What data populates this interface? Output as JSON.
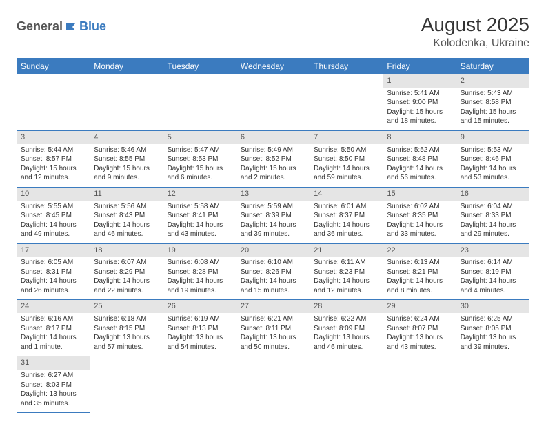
{
  "logo": {
    "text1": "General",
    "text2": "Blue"
  },
  "title": "August 2025",
  "location": "Kolodenka, Ukraine",
  "colors": {
    "header_bg": "#3b7bbf",
    "header_text": "#ffffff",
    "daynum_bg": "#e5e5e5",
    "cell_border": "#3b7bbf",
    "body_text": "#333333"
  },
  "weekdays": [
    "Sunday",
    "Monday",
    "Tuesday",
    "Wednesday",
    "Thursday",
    "Friday",
    "Saturday"
  ],
  "weeks": [
    [
      null,
      null,
      null,
      null,
      null,
      {
        "n": "1",
        "sr": "Sunrise: 5:41 AM",
        "ss": "Sunset: 9:00 PM",
        "dl": "Daylight: 15 hours and 18 minutes."
      },
      {
        "n": "2",
        "sr": "Sunrise: 5:43 AM",
        "ss": "Sunset: 8:58 PM",
        "dl": "Daylight: 15 hours and 15 minutes."
      }
    ],
    [
      {
        "n": "3",
        "sr": "Sunrise: 5:44 AM",
        "ss": "Sunset: 8:57 PM",
        "dl": "Daylight: 15 hours and 12 minutes."
      },
      {
        "n": "4",
        "sr": "Sunrise: 5:46 AM",
        "ss": "Sunset: 8:55 PM",
        "dl": "Daylight: 15 hours and 9 minutes."
      },
      {
        "n": "5",
        "sr": "Sunrise: 5:47 AM",
        "ss": "Sunset: 8:53 PM",
        "dl": "Daylight: 15 hours and 6 minutes."
      },
      {
        "n": "6",
        "sr": "Sunrise: 5:49 AM",
        "ss": "Sunset: 8:52 PM",
        "dl": "Daylight: 15 hours and 2 minutes."
      },
      {
        "n": "7",
        "sr": "Sunrise: 5:50 AM",
        "ss": "Sunset: 8:50 PM",
        "dl": "Daylight: 14 hours and 59 minutes."
      },
      {
        "n": "8",
        "sr": "Sunrise: 5:52 AM",
        "ss": "Sunset: 8:48 PM",
        "dl": "Daylight: 14 hours and 56 minutes."
      },
      {
        "n": "9",
        "sr": "Sunrise: 5:53 AM",
        "ss": "Sunset: 8:46 PM",
        "dl": "Daylight: 14 hours and 53 minutes."
      }
    ],
    [
      {
        "n": "10",
        "sr": "Sunrise: 5:55 AM",
        "ss": "Sunset: 8:45 PM",
        "dl": "Daylight: 14 hours and 49 minutes."
      },
      {
        "n": "11",
        "sr": "Sunrise: 5:56 AM",
        "ss": "Sunset: 8:43 PM",
        "dl": "Daylight: 14 hours and 46 minutes."
      },
      {
        "n": "12",
        "sr": "Sunrise: 5:58 AM",
        "ss": "Sunset: 8:41 PM",
        "dl": "Daylight: 14 hours and 43 minutes."
      },
      {
        "n": "13",
        "sr": "Sunrise: 5:59 AM",
        "ss": "Sunset: 8:39 PM",
        "dl": "Daylight: 14 hours and 39 minutes."
      },
      {
        "n": "14",
        "sr": "Sunrise: 6:01 AM",
        "ss": "Sunset: 8:37 PM",
        "dl": "Daylight: 14 hours and 36 minutes."
      },
      {
        "n": "15",
        "sr": "Sunrise: 6:02 AM",
        "ss": "Sunset: 8:35 PM",
        "dl": "Daylight: 14 hours and 33 minutes."
      },
      {
        "n": "16",
        "sr": "Sunrise: 6:04 AM",
        "ss": "Sunset: 8:33 PM",
        "dl": "Daylight: 14 hours and 29 minutes."
      }
    ],
    [
      {
        "n": "17",
        "sr": "Sunrise: 6:05 AM",
        "ss": "Sunset: 8:31 PM",
        "dl": "Daylight: 14 hours and 26 minutes."
      },
      {
        "n": "18",
        "sr": "Sunrise: 6:07 AM",
        "ss": "Sunset: 8:29 PM",
        "dl": "Daylight: 14 hours and 22 minutes."
      },
      {
        "n": "19",
        "sr": "Sunrise: 6:08 AM",
        "ss": "Sunset: 8:28 PM",
        "dl": "Daylight: 14 hours and 19 minutes."
      },
      {
        "n": "20",
        "sr": "Sunrise: 6:10 AM",
        "ss": "Sunset: 8:26 PM",
        "dl": "Daylight: 14 hours and 15 minutes."
      },
      {
        "n": "21",
        "sr": "Sunrise: 6:11 AM",
        "ss": "Sunset: 8:23 PM",
        "dl": "Daylight: 14 hours and 12 minutes."
      },
      {
        "n": "22",
        "sr": "Sunrise: 6:13 AM",
        "ss": "Sunset: 8:21 PM",
        "dl": "Daylight: 14 hours and 8 minutes."
      },
      {
        "n": "23",
        "sr": "Sunrise: 6:14 AM",
        "ss": "Sunset: 8:19 PM",
        "dl": "Daylight: 14 hours and 4 minutes."
      }
    ],
    [
      {
        "n": "24",
        "sr": "Sunrise: 6:16 AM",
        "ss": "Sunset: 8:17 PM",
        "dl": "Daylight: 14 hours and 1 minute."
      },
      {
        "n": "25",
        "sr": "Sunrise: 6:18 AM",
        "ss": "Sunset: 8:15 PM",
        "dl": "Daylight: 13 hours and 57 minutes."
      },
      {
        "n": "26",
        "sr": "Sunrise: 6:19 AM",
        "ss": "Sunset: 8:13 PM",
        "dl": "Daylight: 13 hours and 54 minutes."
      },
      {
        "n": "27",
        "sr": "Sunrise: 6:21 AM",
        "ss": "Sunset: 8:11 PM",
        "dl": "Daylight: 13 hours and 50 minutes."
      },
      {
        "n": "28",
        "sr": "Sunrise: 6:22 AM",
        "ss": "Sunset: 8:09 PM",
        "dl": "Daylight: 13 hours and 46 minutes."
      },
      {
        "n": "29",
        "sr": "Sunrise: 6:24 AM",
        "ss": "Sunset: 8:07 PM",
        "dl": "Daylight: 13 hours and 43 minutes."
      },
      {
        "n": "30",
        "sr": "Sunrise: 6:25 AM",
        "ss": "Sunset: 8:05 PM",
        "dl": "Daylight: 13 hours and 39 minutes."
      }
    ],
    [
      {
        "n": "31",
        "sr": "Sunrise: 6:27 AM",
        "ss": "Sunset: 8:03 PM",
        "dl": "Daylight: 13 hours and 35 minutes."
      },
      null,
      null,
      null,
      null,
      null,
      null
    ]
  ]
}
